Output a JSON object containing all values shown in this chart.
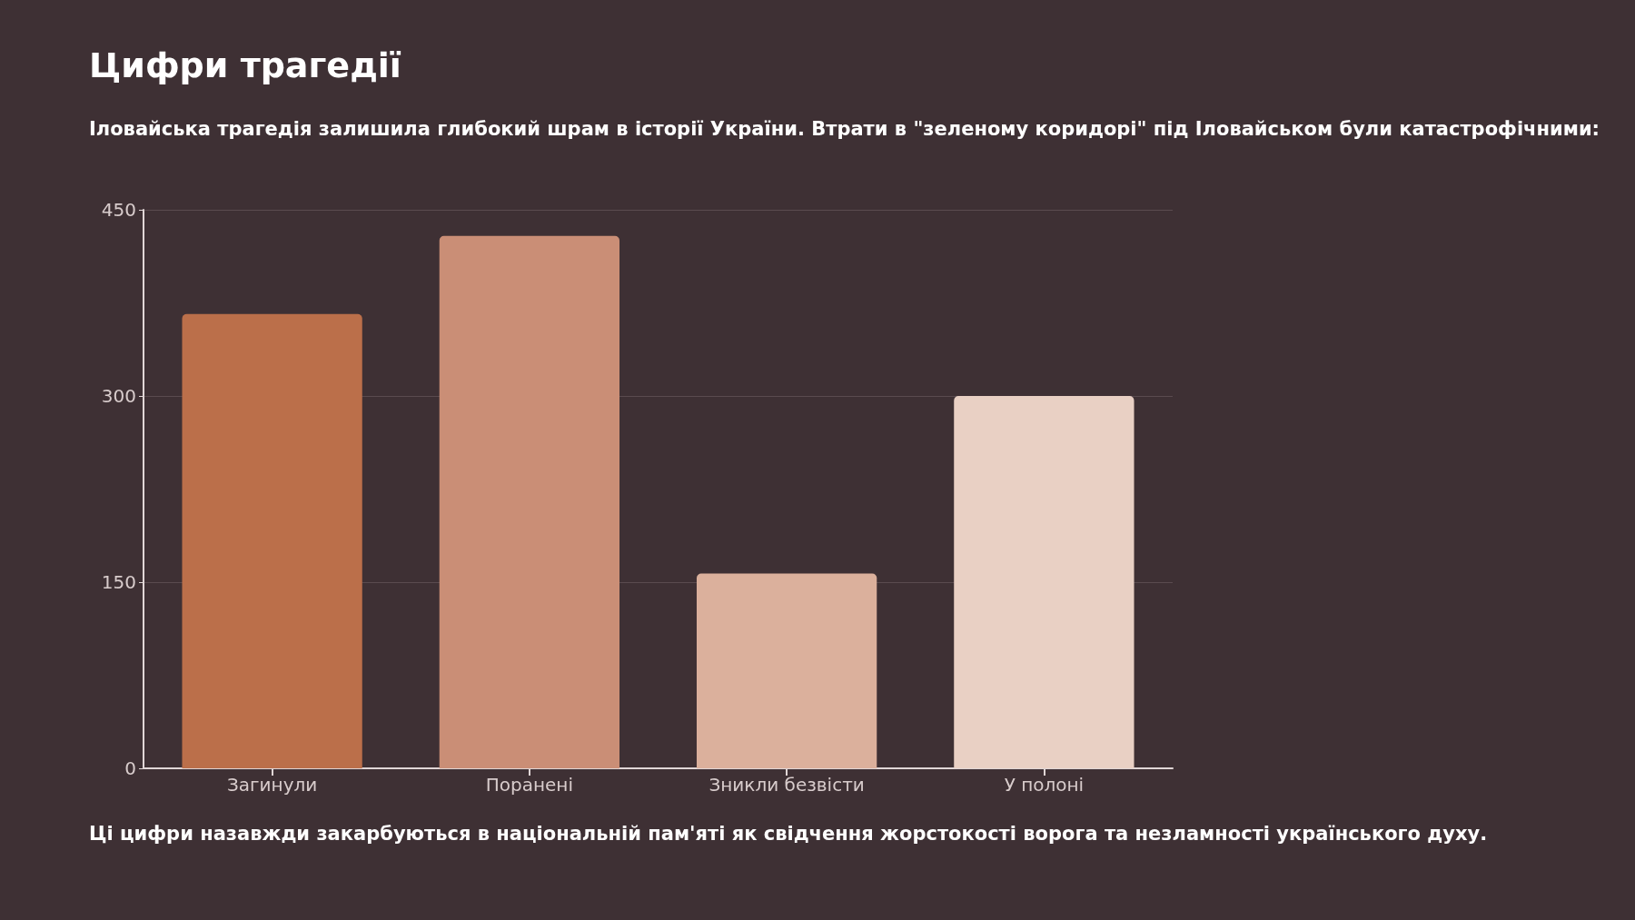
{
  "chart_data": {
    "type": "bar",
    "title": "Цифри трагедії",
    "subtitle": "Іловайська трагедія залишила глибокий шрам в історії України. Втрати в \"зеленому коридорі\" під Іловайськом були катастрофічними:",
    "annotations": [
      "Ці цифри назавжди закарбуються в національній пам'яті як свідчення жорстокості ворога та незламності українського духу."
    ],
    "categories": [
      "Загинули",
      "Поранені",
      "Зникли безвісти",
      "У полоні"
    ],
    "values": [
      366,
      429,
      157,
      300
    ],
    "colors": [
      "#bb6f4a",
      "#ca8e76",
      "#dbb09c",
      "#e9d0c4"
    ],
    "ylim": [
      0,
      450
    ],
    "yticks": [
      0,
      150,
      300,
      450
    ],
    "grid": "y"
  }
}
